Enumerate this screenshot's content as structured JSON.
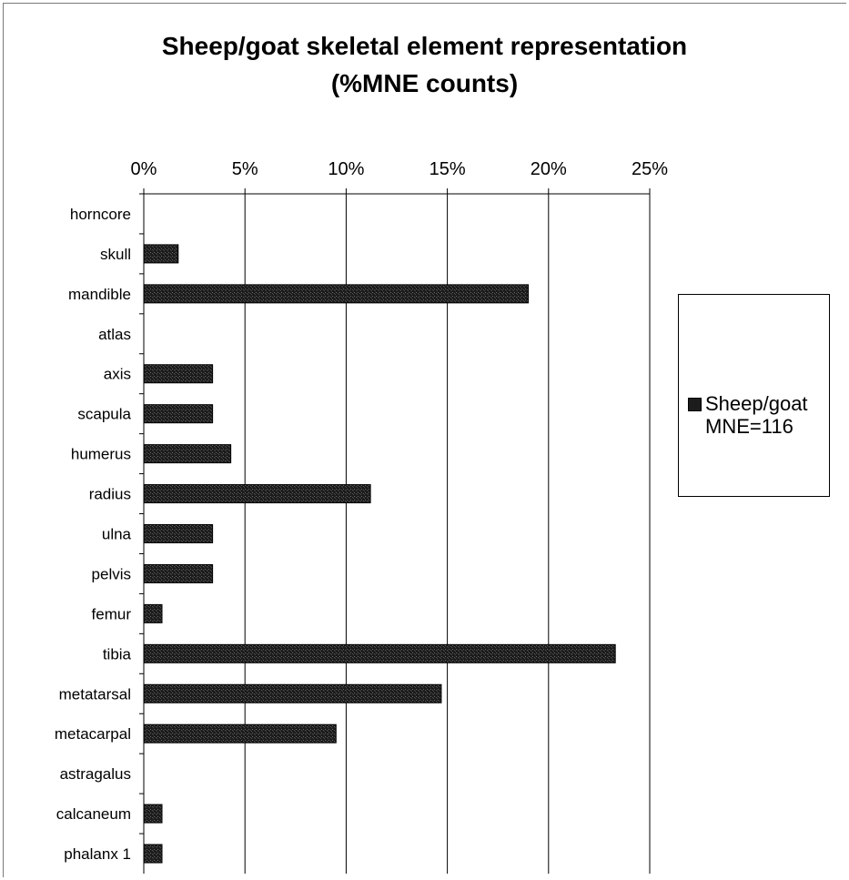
{
  "chart_data": {
    "type": "bar",
    "orientation": "horizontal",
    "title": "Sheep/goat skeletal element representation\n(%MNE counts)",
    "xlabel": "",
    "ylabel": "",
    "xlim": [
      0,
      25
    ],
    "x_ticks": [
      "0%",
      "5%",
      "10%",
      "15%",
      "20%",
      "25%"
    ],
    "x_axis_position": "top",
    "grid": "vertical",
    "legend_position": "right",
    "categories": [
      "horncore",
      "skull",
      "mandible",
      "atlas",
      "axis",
      "scapula",
      "humerus",
      "radius",
      "ulna",
      "pelvis",
      "femur",
      "tibia",
      "metatarsal",
      "metacarpal",
      "astragalus",
      "calcaneum",
      "phalanx 1"
    ],
    "series": [
      {
        "name": "Sheep/goat MNE=116",
        "color": "#1c1c1c",
        "values": [
          0,
          1.7,
          19.0,
          0,
          3.4,
          3.4,
          4.3,
          11.2,
          3.4,
          3.4,
          0.9,
          23.3,
          14.7,
          9.5,
          0,
          0.9,
          0.9
        ]
      }
    ]
  }
}
